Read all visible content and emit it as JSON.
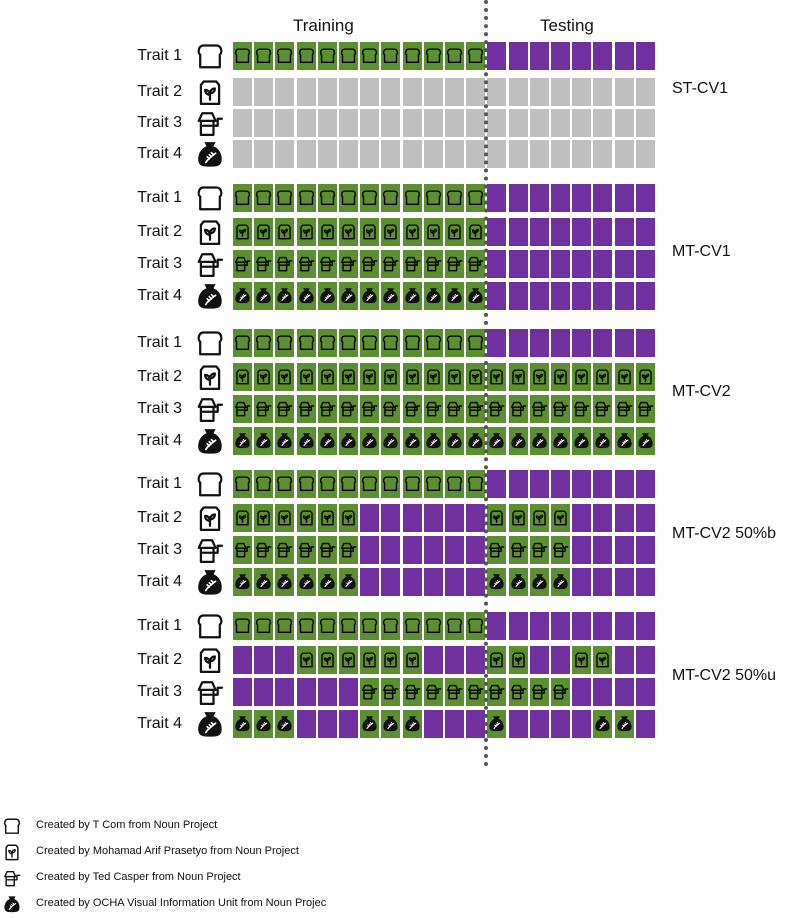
{
  "header": {
    "training": "Training",
    "testing": "Testing"
  },
  "colors": {
    "train": "#5b8f32",
    "test": "#7030a0",
    "missing": "#bfbfbf"
  },
  "icons": [
    "bread-icon",
    "seed-bag-icon",
    "mill-icon",
    "grain-sack-icon"
  ],
  "training_count": 12,
  "blocks": [
    {
      "label": "ST-CV1",
      "traits": [
        {
          "name": "Trait 1",
          "cells": "TTTTTTTTTTTTPPPPPPPP"
        },
        {
          "name": "Trait 2",
          "cells": "MMMMMMMMMMMMMMMMMMMM"
        },
        {
          "name": "Trait 3",
          "cells": "MMMMMMMMMMMMMMMMMMMM"
        },
        {
          "name": "Trait 4",
          "cells": "MMMMMMMMMMMMMMMMMMMM"
        }
      ]
    },
    {
      "label": "MT-CV1",
      "traits": [
        {
          "name": "Trait 1",
          "cells": "TTTTTTTTTTTTPPPPPPPP"
        },
        {
          "name": "Trait 2",
          "cells": "TTTTTTTTTTTTPPPPPPPP"
        },
        {
          "name": "Trait 3",
          "cells": "TTTTTTTTTTTTPPPPPPPP"
        },
        {
          "name": "Trait 4",
          "cells": "TTTTTTTTTTTTPPPPPPPP"
        }
      ]
    },
    {
      "label": "MT-CV2",
      "traits": [
        {
          "name": "Trait 1",
          "cells": "TTTTTTTTTTTTPPPPPPPP"
        },
        {
          "name": "Trait 2",
          "cells": "TTTTTTTTTTTTTTTTTTTT"
        },
        {
          "name": "Trait 3",
          "cells": "TTTTTTTTTTTTTTTTTTTT"
        },
        {
          "name": "Trait 4",
          "cells": "TTTTTTTTTTTTTTTTTTTT"
        }
      ]
    },
    {
      "label": "MT-CV2 50%b",
      "traits": [
        {
          "name": "Trait 1",
          "cells": "TTTTTTTTTTTTPPPPPPPP"
        },
        {
          "name": "Trait 2",
          "cells": "TTTTTTPPPPPPTTTTPPPP"
        },
        {
          "name": "Trait 3",
          "cells": "TTTTTTPPPPPPTTTTPPPP"
        },
        {
          "name": "Trait 4",
          "cells": "TTTTTTPPPPPPTTTTPPPP"
        }
      ]
    },
    {
      "label": "MT-CV2 50%u",
      "traits": [
        {
          "name": "Trait 1",
          "cells": "TTTTTTTTTTTTPPPPPPPP"
        },
        {
          "name": "Trait 2",
          "cells": "PPPTTTTTTPPPTTPPTTPP"
        },
        {
          "name": "Trait 3",
          "cells": "PPPPPPTTTTTTTTTTPPPP"
        },
        {
          "name": "Trait 4",
          "cells": "TTTPPPTTTPPPTPPPPTTP"
        }
      ]
    }
  ],
  "credits": [
    {
      "icon": "bread-icon",
      "text": "Created by T Com from Noun Project"
    },
    {
      "icon": "seed-bag-icon",
      "text": "Created by Mohamad Arif Prasetyo from Noun Project"
    },
    {
      "icon": "mill-icon",
      "text": "Created by Ted Casper from Noun Project"
    },
    {
      "icon": "grain-sack-icon",
      "text": "Created by OCHA Visual Information Unit from Noun Projec"
    }
  ]
}
